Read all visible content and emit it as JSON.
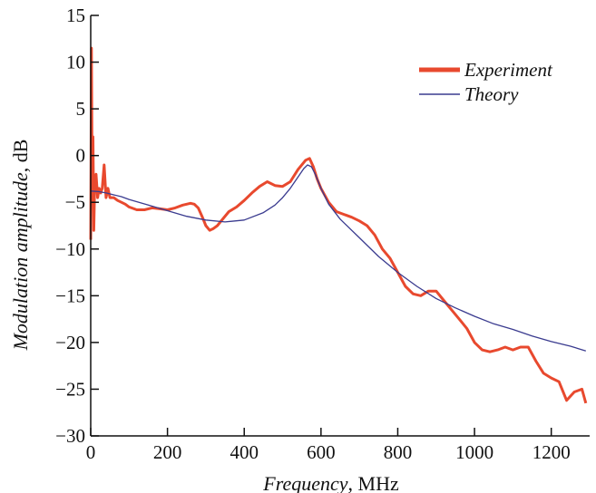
{
  "chart_data": {
    "type": "line",
    "title": "",
    "xlabel_italic": "Frequency",
    "xlabel_unit": ", MHz",
    "ylabel_italic": "Modulation amplitude",
    "ylabel_unit": ", dB",
    "xlim": [
      0,
      1300
    ],
    "ylim": [
      -30,
      15
    ],
    "x_ticks": [
      0,
      200,
      400,
      600,
      800,
      1000,
      1200
    ],
    "y_ticks": [
      15,
      10,
      5,
      0,
      -5,
      -10,
      -15,
      -20,
      -25,
      -30
    ],
    "x_tick_labels": [
      "0",
      "200",
      "400",
      "600",
      "800",
      "1000",
      "1200"
    ],
    "y_tick_labels": [
      "15",
      "10",
      "5",
      "0",
      "−5",
      "−10",
      "−15",
      "−20",
      "−25",
      "−30"
    ],
    "grid": false,
    "legend_position": "top-right",
    "series": [
      {
        "name": "Experiment",
        "color": "#e8492e",
        "line_width": "thick",
        "x": [
          0,
          2,
          4,
          6,
          8,
          10,
          14,
          18,
          22,
          26,
          30,
          35,
          40,
          45,
          50,
          60,
          70,
          80,
          90,
          100,
          120,
          140,
          160,
          180,
          200,
          220,
          240,
          260,
          270,
          280,
          290,
          300,
          310,
          320,
          330,
          340,
          360,
          380,
          400,
          420,
          440,
          460,
          480,
          500,
          520,
          540,
          560,
          570,
          580,
          590,
          600,
          620,
          640,
          660,
          680,
          700,
          720,
          740,
          760,
          780,
          800,
          820,
          840,
          860,
          880,
          900,
          920,
          940,
          960,
          980,
          1000,
          1020,
          1040,
          1060,
          1080,
          1100,
          1120,
          1140,
          1160,
          1180,
          1200,
          1220,
          1240,
          1260,
          1280,
          1290
        ],
        "y": [
          -9,
          11.5,
          -5,
          2,
          -8,
          -4,
          -2,
          -4.5,
          -3.5,
          -4,
          -3.5,
          -1,
          -4.5,
          -3.5,
          -4.5,
          -4.5,
          -4.8,
          -5,
          -5.2,
          -5.5,
          -5.8,
          -5.8,
          -5.6,
          -5.7,
          -5.8,
          -5.6,
          -5.3,
          -5.1,
          -5.2,
          -5.6,
          -6.5,
          -7.5,
          -8,
          -7.8,
          -7.5,
          -7,
          -6,
          -5.5,
          -4.8,
          -4,
          -3.3,
          -2.8,
          -3.2,
          -3.3,
          -2.8,
          -1.5,
          -0.5,
          -0.3,
          -1.2,
          -2.5,
          -3.5,
          -5,
          -6,
          -6.3,
          -6.6,
          -7,
          -7.5,
          -8.5,
          -10,
          -11,
          -12.5,
          -14,
          -14.8,
          -15,
          -14.5,
          -14.5,
          -15.5,
          -16.5,
          -17.5,
          -18.5,
          -20,
          -20.8,
          -21,
          -20.8,
          -20.5,
          -20.8,
          -20.5,
          -20.5,
          -22,
          -23.3,
          -23.8,
          -24.2,
          -26.2,
          -25.3,
          -25,
          -26.5
        ]
      },
      {
        "name": "Theory",
        "color": "#3a3b8f",
        "line_width": "thin",
        "x": [
          0,
          20,
          40,
          60,
          80,
          100,
          150,
          200,
          250,
          300,
          350,
          400,
          450,
          480,
          500,
          520,
          540,
          555,
          565,
          575,
          585,
          600,
          620,
          650,
          700,
          750,
          800,
          850,
          900,
          950,
          1000,
          1050,
          1100,
          1150,
          1200,
          1250,
          1290
        ],
        "y": [
          -3.8,
          -3.85,
          -4,
          -4.2,
          -4.4,
          -4.7,
          -5.3,
          -5.9,
          -6.5,
          -6.9,
          -7.1,
          -6.9,
          -6.1,
          -5.3,
          -4.5,
          -3.5,
          -2.3,
          -1.4,
          -1,
          -1.2,
          -2,
          -3.5,
          -5.2,
          -6.8,
          -8.8,
          -10.8,
          -12.5,
          -14,
          -15.3,
          -16.3,
          -17.2,
          -18,
          -18.6,
          -19.3,
          -19.9,
          -20.4,
          -20.9
        ]
      }
    ]
  }
}
